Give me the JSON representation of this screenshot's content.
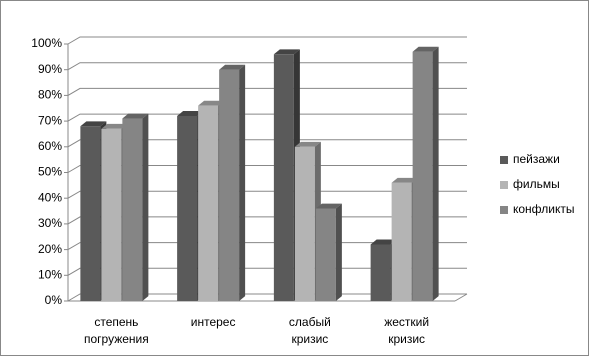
{
  "chart_data": {
    "type": "bar3d",
    "categories": [
      "степень погружения",
      "интерес",
      "слабый кризис",
      "жесткий кризис"
    ],
    "series": [
      {
        "name": "пейзажи",
        "color": "#5a5a5a",
        "values": [
          68,
          72,
          96,
          22
        ]
      },
      {
        "name": "фильмы",
        "color": "#b4b4b4",
        "values": [
          67,
          76,
          60,
          46
        ]
      },
      {
        "name": "конфликты",
        "color": "#858585",
        "values": [
          71,
          90,
          36,
          97
        ]
      }
    ],
    "ylim": [
      0,
      100
    ],
    "yticks": [
      {
        "value": 0,
        "label": "0%"
      },
      {
        "value": 10,
        "label": "10%"
      },
      {
        "value": 20,
        "label": "20%"
      },
      {
        "value": 30,
        "label": "30%"
      },
      {
        "value": 40,
        "label": "40%"
      },
      {
        "value": 50,
        "label": "50%"
      },
      {
        "value": 60,
        "label": "60%"
      },
      {
        "value": 70,
        "label": "70%"
      },
      {
        "value": 80,
        "label": "80%"
      },
      {
        "value": 90,
        "label": "90%"
      },
      {
        "value": 100,
        "label": "100%"
      }
    ],
    "grid": true,
    "legend": "right"
  }
}
